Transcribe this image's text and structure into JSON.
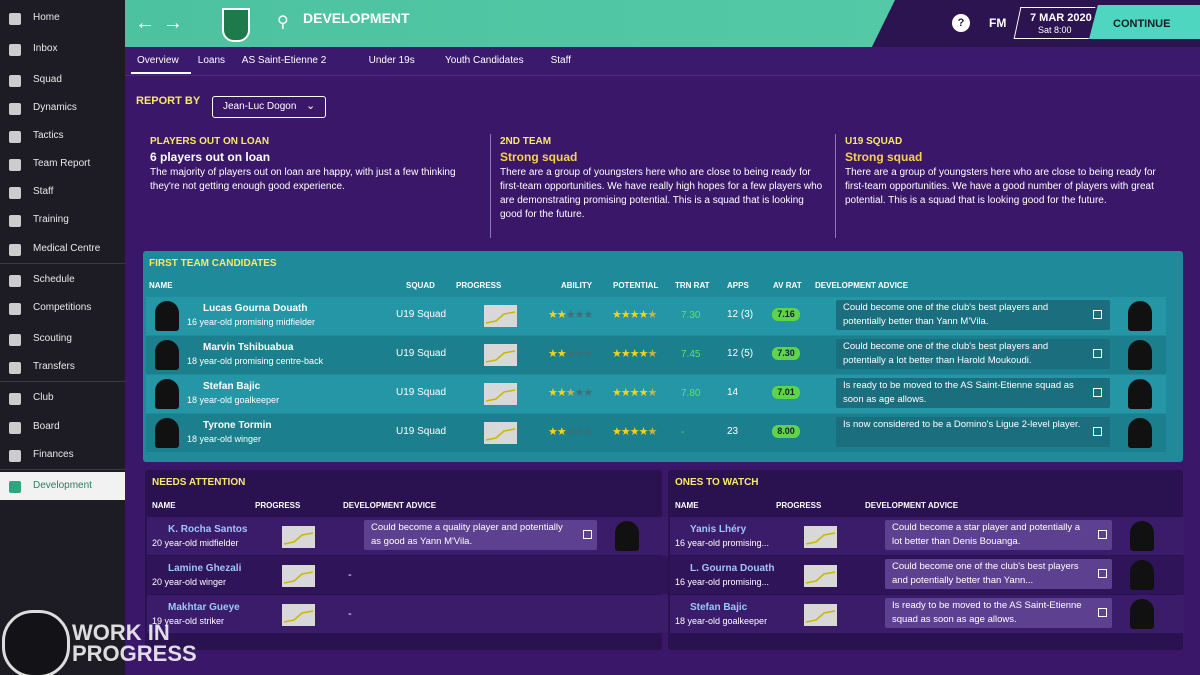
{
  "sidebar": {
    "items": [
      "Home",
      "Inbox",
      "Squad",
      "Dynamics",
      "Tactics",
      "Team Report",
      "Staff",
      "Training",
      "Medical Centre",
      "Schedule",
      "Competitions",
      "Scouting",
      "Transfers",
      "Club",
      "Board",
      "Finances",
      "Development"
    ],
    "active": 16
  },
  "topbar": {
    "title": "DEVELOPMENT",
    "brand": "FM",
    "date": "7 MAR 2020",
    "time": "Sat 8:00",
    "continue": "CONTINUE"
  },
  "tabs": [
    "Overview",
    "Loans",
    "AS Saint-Etienne 2",
    "Under 19s",
    "Youth Candidates",
    "Staff"
  ],
  "report_by": {
    "label": "REPORT BY",
    "value": "Jean-Luc Dogon"
  },
  "summaries": [
    {
      "heading": "PLAYERS OUT ON LOAN",
      "title": "6 players out on loan",
      "text": "The majority of players out on loan are happy, with just a few thinking they're not getting enough good experience."
    },
    {
      "heading": "2ND TEAM",
      "title": "Strong squad",
      "text": "There are a group of youngsters here who are close to being ready for first-team opportunities. We have really high hopes for a few players who are demonstrating promising potential. This is a squad that is looking good for the future."
    },
    {
      "heading": "U19 SQUAD",
      "title": "Strong squad",
      "text": "There are a group of youngsters here who are close to being ready for first-team opportunities. We have a good number of players with great potential. This is a squad that is looking good for the future."
    }
  ],
  "first_team": {
    "title": "FIRST TEAM CANDIDATES",
    "columns": [
      "NAME",
      "SQUAD",
      "PROGRESS",
      "ABILITY",
      "POTENTIAL",
      "TRN RAT",
      "APPS",
      "AV RAT",
      "DEVELOPMENT ADVICE"
    ],
    "rows": [
      {
        "name": "Lucas Gourna Douath",
        "desc": "16 year-old promising midfielder",
        "squad": "U19 Squad",
        "ability": 2,
        "potential": 4.5,
        "trn_rat": "7.30",
        "apps": "12 (3)",
        "av_rat": "7.16",
        "advice": "Could become one of the club's best players and potentially better than Yann M'Vila."
      },
      {
        "name": "Marvin Tshibuabua",
        "desc": "18 year-old promising centre-back",
        "squad": "U19 Squad",
        "ability": 2,
        "potential": 4.5,
        "trn_rat": "7.45",
        "apps": "12 (5)",
        "av_rat": "7.30",
        "advice": "Could become one of the club's best players and potentially a lot better than Harold Moukoudi."
      },
      {
        "name": "Stefan Bajic",
        "desc": "18 year-old goalkeeper",
        "squad": "U19 Squad",
        "ability": 2.5,
        "potential": 4.5,
        "trn_rat": "7.80",
        "apps": "14",
        "av_rat": "7.01",
        "advice": "Is ready to be moved to the AS Saint-Etienne squad as soon as age allows."
      },
      {
        "name": "Tyrone Tormin",
        "desc": "18 year-old winger",
        "squad": "U19 Squad",
        "ability": 2,
        "potential": 4.5,
        "trn_rat": "-",
        "apps": "23",
        "av_rat": "8.00",
        "advice": "Is now considered to be a Domino's Ligue 2-level player."
      }
    ]
  },
  "needs_attention": {
    "title": "NEEDS ATTENTION",
    "columns": [
      "NAME",
      "PROGRESS",
      "DEVELOPMENT ADVICE"
    ],
    "rows": [
      {
        "name": "K. Rocha Santos",
        "desc": "20 year-old midfielder",
        "advice": "Could become a quality player and potentially as good as Yann M'Vila."
      },
      {
        "name": "Lamine Ghezali",
        "desc": "20 year-old winger",
        "advice": "-"
      },
      {
        "name": "Makhtar Gueye",
        "desc": "19 year-old striker",
        "advice": "-"
      }
    ]
  },
  "ones_to_watch": {
    "title": "ONES TO WATCH",
    "columns": [
      "NAME",
      "PROGRESS",
      "DEVELOPMENT ADVICE"
    ],
    "rows": [
      {
        "name": "Yanis Lhéry",
        "desc": "16 year-old promising...",
        "advice": "Could become a star player and potentially a lot better than Denis Bouanga."
      },
      {
        "name": "L. Gourna Douath",
        "desc": "16 year-old promising...",
        "advice": "Could become one of the club's best players and potentially better than Yann..."
      },
      {
        "name": "Stefan Bajic",
        "desc": "18 year-old goalkeeper",
        "advice": "Is ready to be moved to the AS Saint-Etienne squad as soon as age allows."
      }
    ]
  },
  "watermark": [
    "WORK IN",
    "PROGRESS"
  ]
}
